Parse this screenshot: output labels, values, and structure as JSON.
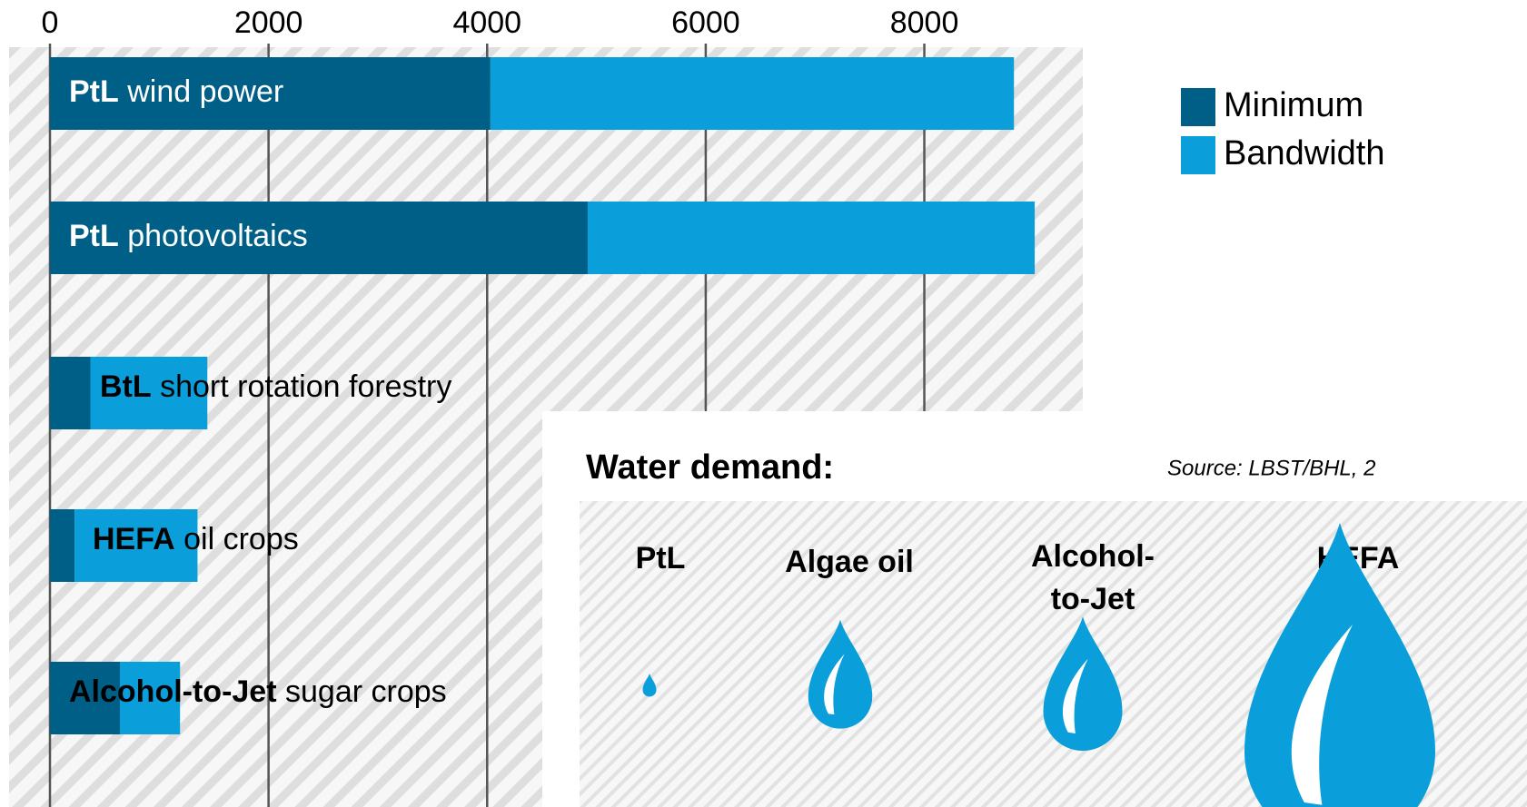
{
  "chart_data": {
    "type": "bar-stacked-horizontal",
    "categories": [
      {
        "bold": "PtL",
        "rest": "wind power"
      },
      {
        "bold": "PtL",
        "rest": "photovoltaics"
      },
      {
        "bold": "BtL",
        "rest": "short rotation forestry"
      },
      {
        "bold": "HEFA",
        "rest": "oil crops"
      },
      {
        "bold": "Alcohol-to-Jet",
        "rest": "sugar crops"
      }
    ],
    "label_colors": [
      "#ffffff",
      "#ffffff",
      "#000000",
      "#000000",
      "#000000"
    ],
    "series": [
      {
        "name": "Minimum",
        "color": "#005f87",
        "values": [
          4030,
          4920,
          370,
          225,
          640
        ]
      },
      {
        "name": "Bandwidth",
        "color": "#0a9fda",
        "values": [
          4790,
          4090,
          1070,
          1125,
          550
        ]
      }
    ],
    "xlim": [
      0,
      9450
    ],
    "xticks": [
      0,
      2000,
      4000,
      6000,
      8000
    ],
    "grid": true,
    "legend": "upper right"
  },
  "water_demand": {
    "title": "Water demand:",
    "source": "Source: LBST/BHL, 2",
    "items": [
      [
        "PtL"
      ],
      [
        "Algae oil"
      ],
      [
        "Alcohol-",
        "to-Jet"
      ],
      [
        "HEFA"
      ]
    ]
  }
}
